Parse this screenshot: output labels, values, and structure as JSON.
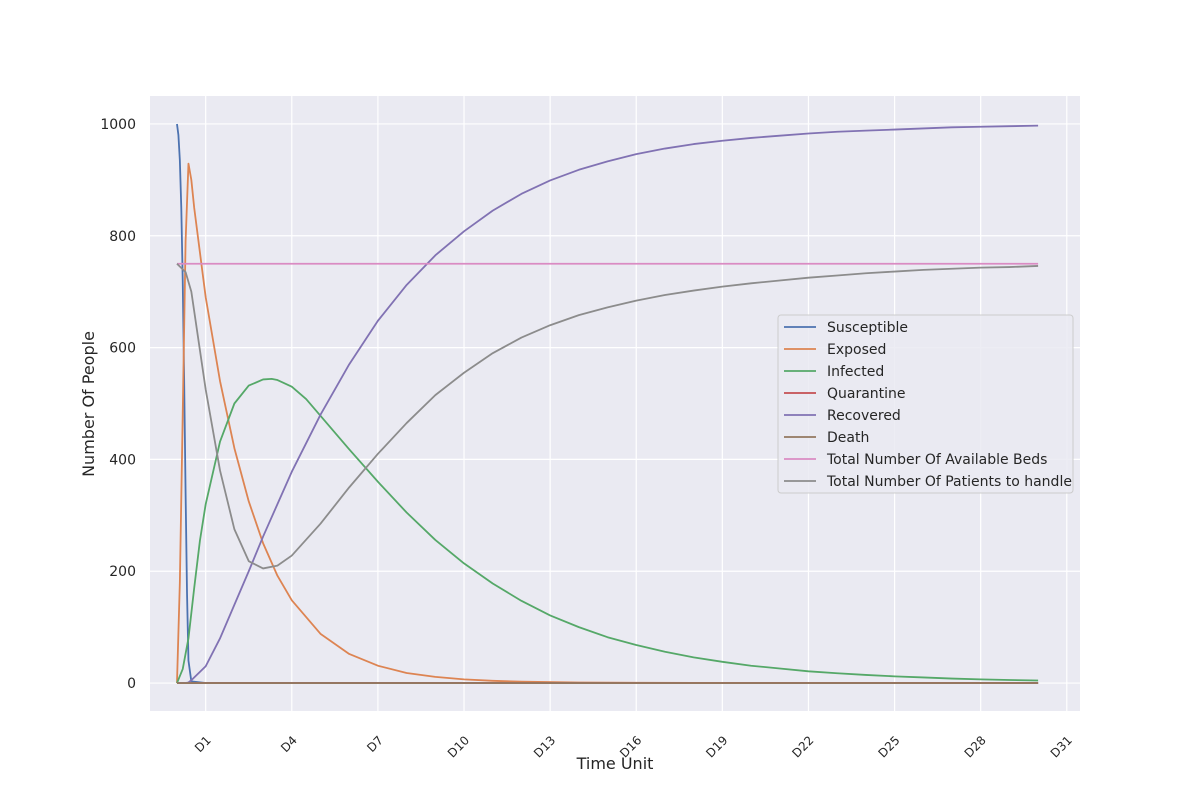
{
  "chart_data": {
    "type": "line",
    "xlabel": "Time Unit",
    "ylabel": "Number Of People",
    "ylim": [
      -50,
      1050
    ],
    "xlim": [
      -0.94,
      31.46
    ],
    "x_ticks": [
      1,
      4,
      7,
      10,
      13,
      16,
      19,
      22,
      25,
      28,
      31
    ],
    "x_tick_labels": [
      "D1",
      "D4",
      "D7",
      "D10",
      "D13",
      "D16",
      "D19",
      "D22",
      "D25",
      "D28",
      "D31"
    ],
    "y_ticks": [
      0,
      200,
      400,
      600,
      800,
      1000
    ],
    "y_tick_labels": [
      "0",
      "200",
      "400",
      "600",
      "800",
      "1000"
    ],
    "grid": true,
    "legend_position": "center-right",
    "series": [
      {
        "name": "Susceptible",
        "color": "#4c72b0",
        "x": [
          0,
          0.05,
          0.1,
          0.15,
          0.2,
          0.25,
          0.3,
          0.35,
          0.4,
          0.5,
          1,
          2,
          5,
          10,
          15,
          20,
          25,
          30
        ],
        "y": [
          1000,
          980,
          935,
          850,
          720,
          540,
          340,
          160,
          40,
          3,
          0,
          0,
          0,
          0,
          0,
          0,
          0,
          0
        ]
      },
      {
        "name": "Exposed",
        "color": "#dd8452",
        "x": [
          0,
          0.1,
          0.2,
          0.3,
          0.4,
          0.5,
          0.6,
          0.8,
          1,
          1.5,
          2,
          2.5,
          3,
          3.5,
          4,
          5,
          6,
          7,
          8,
          9,
          10,
          11,
          12,
          14,
          16,
          20,
          25,
          30
        ],
        "y": [
          0,
          180,
          480,
          790,
          929,
          900,
          850,
          770,
          690,
          540,
          420,
          325,
          250,
          192,
          148,
          88,
          52,
          31,
          18,
          11,
          6.5,
          4,
          2.4,
          1,
          0.5,
          0.1,
          0,
          0
        ]
      },
      {
        "name": "Infected",
        "color": "#55a868",
        "x": [
          0,
          0.2,
          0.4,
          0.6,
          0.8,
          1,
          1.5,
          2,
          2.5,
          3,
          3.3,
          3.5,
          4,
          4.5,
          5,
          6,
          7,
          8,
          9,
          10,
          11,
          12,
          13,
          14,
          15,
          16,
          17,
          18,
          19,
          20,
          21,
          22,
          23,
          24,
          25,
          26,
          27,
          28,
          29,
          30
        ],
        "y": [
          0,
          25,
          80,
          170,
          255,
          320,
          432,
          500,
          532,
          543,
          544,
          542,
          530,
          508,
          478,
          418,
          360,
          305,
          256,
          214,
          178,
          147,
          121,
          100,
          82,
          68,
          56,
          46,
          38,
          31,
          26,
          21,
          17.5,
          14.5,
          12,
          10,
          8,
          6.6,
          5.5,
          4.5
        ]
      },
      {
        "name": "Quarantine",
        "color": "#c44e52",
        "x": [
          0,
          5,
          10,
          15,
          20,
          25,
          30
        ],
        "y": [
          0,
          0,
          0,
          0,
          0,
          0,
          0
        ]
      },
      {
        "name": "Recovered",
        "color": "#8172b3",
        "x": [
          0,
          0.3,
          0.4,
          0.5,
          1,
          1.5,
          2,
          2.5,
          3,
          3.5,
          4,
          5,
          6,
          7,
          8,
          9,
          10,
          11,
          12,
          13,
          14,
          15,
          16,
          17,
          18,
          19,
          20,
          21,
          22,
          23,
          24,
          25,
          26,
          27,
          28,
          29,
          30
        ],
        "y": [
          0,
          0,
          1,
          5,
          30,
          80,
          140,
          200,
          262,
          320,
          378,
          480,
          570,
          648,
          712,
          765,
          808,
          845,
          875,
          899,
          918,
          933,
          946,
          956,
          964,
          970,
          975,
          979,
          983,
          986,
          988,
          990,
          992,
          994,
          995,
          996,
          997
        ]
      },
      {
        "name": "Death",
        "color": "#937860",
        "x": [
          0,
          5,
          10,
          15,
          20,
          25,
          30
        ],
        "y": [
          0,
          0,
          0,
          0,
          0,
          0,
          0
        ]
      },
      {
        "name": "Total Number Of Available Beds",
        "color": "#da8bc3",
        "x": [
          0,
          30
        ],
        "y": [
          750,
          750
        ]
      },
      {
        "name": "Total Number Of Patients to handle",
        "color": "#8c8c8c",
        "x": [
          0,
          0.3,
          0.5,
          1,
          1.5,
          2,
          2.5,
          3,
          3.5,
          4,
          5,
          6,
          7,
          8,
          9,
          10,
          11,
          12,
          13,
          14,
          15,
          16,
          17,
          18,
          19,
          20,
          21,
          22,
          23,
          24,
          25,
          26,
          27,
          28,
          29,
          30
        ],
        "y": [
          750,
          735,
          700,
          525,
          380,
          275,
          218,
          205,
          210,
          228,
          285,
          350,
          410,
          465,
          515,
          555,
          590,
          618,
          640,
          658,
          672,
          684,
          694,
          702,
          709,
          715,
          720,
          725,
          729,
          733,
          736,
          739,
          741,
          743,
          744,
          746
        ]
      }
    ]
  }
}
